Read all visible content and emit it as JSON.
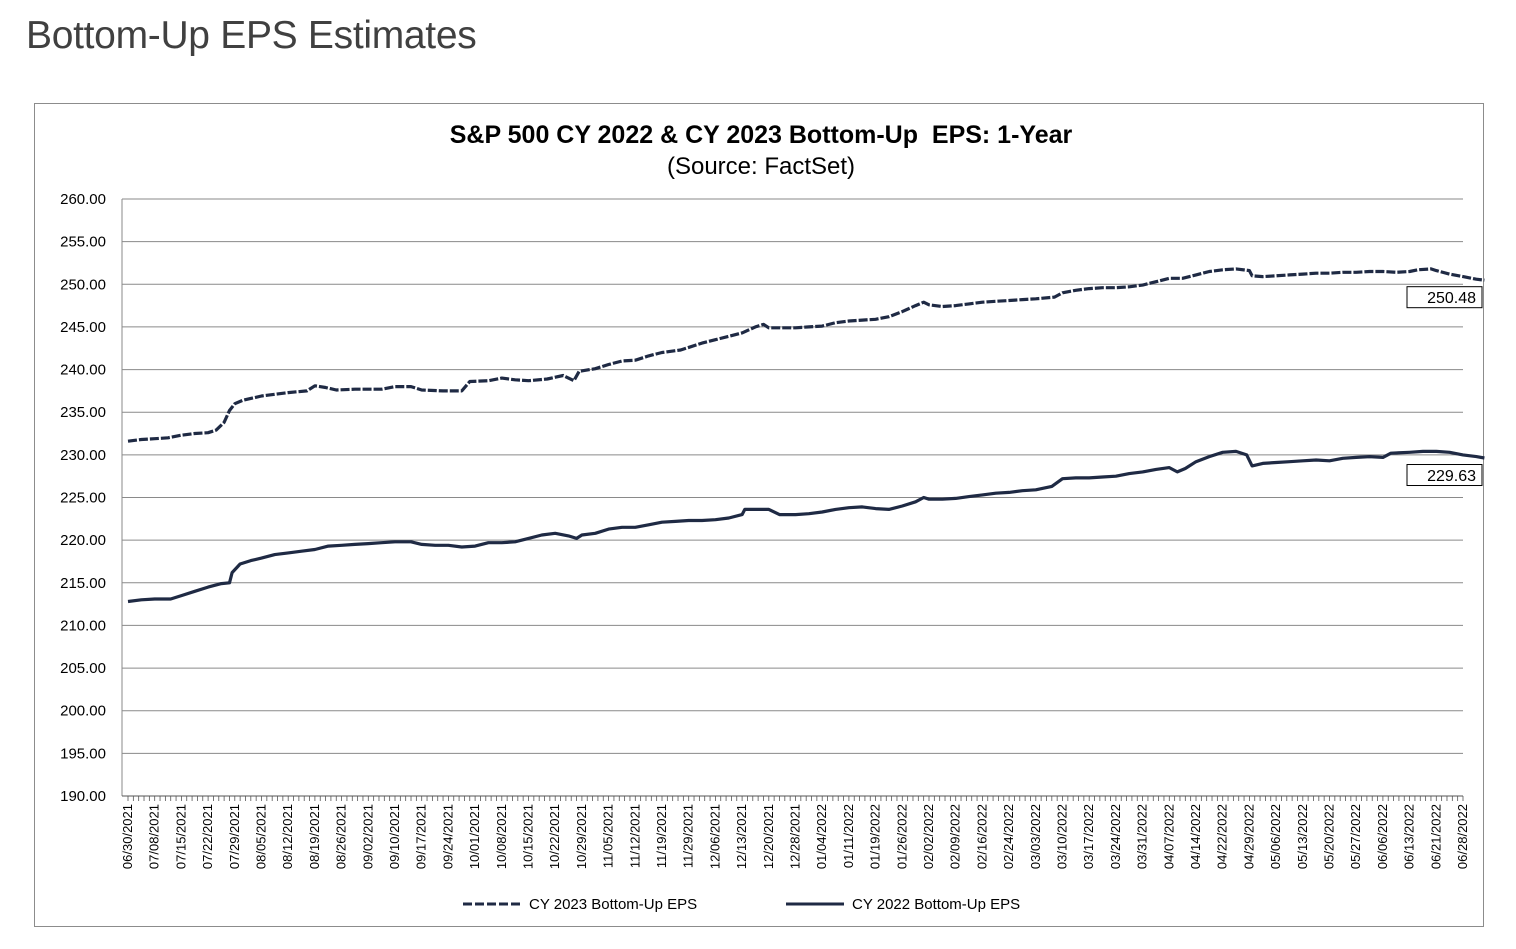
{
  "page": {
    "heading": "Bottom-Up EPS Estimates"
  },
  "chart_data": {
    "type": "line",
    "title": "S&P 500 CY 2022 & CY 2023 Bottom-Up  EPS: 1-Year",
    "subtitle": "(Source: FactSet)",
    "xlabel": "",
    "ylabel": "",
    "ylim": [
      190,
      260
    ],
    "ytick_step": 5,
    "y_ticks": [
      "260.00",
      "255.00",
      "250.00",
      "245.00",
      "240.00",
      "235.00",
      "230.00",
      "225.00",
      "220.00",
      "215.00",
      "210.00",
      "205.00",
      "200.00",
      "195.00",
      "190.00"
    ],
    "grid": true,
    "legend_position": "bottom",
    "categories": [
      "06/30/2021",
      "07/08/2021",
      "07/15/2021",
      "07/22/2021",
      "07/29/2021",
      "08/05/2021",
      "08/12/2021",
      "08/19/2021",
      "08/26/2021",
      "09/02/2021",
      "09/10/2021",
      "09/17/2021",
      "09/24/2021",
      "10/01/2021",
      "10/08/2021",
      "10/15/2021",
      "10/22/2021",
      "10/29/2021",
      "11/05/2021",
      "11/12/2021",
      "11/19/2021",
      "11/29/2021",
      "12/06/2021",
      "12/13/2021",
      "12/20/2021",
      "12/28/2021",
      "01/04/2022",
      "01/11/2022",
      "01/19/2022",
      "01/26/2022",
      "02/02/2022",
      "02/09/2022",
      "02/16/2022",
      "02/24/2022",
      "03/03/2022",
      "03/10/2022",
      "03/17/2022",
      "03/24/2022",
      "03/31/2022",
      "04/07/2022",
      "04/14/2022",
      "04/22/2022",
      "04/29/2022",
      "05/06/2022",
      "05/13/2022",
      "05/20/2022",
      "05/27/2022",
      "06/06/2022",
      "06/13/2022",
      "06/21/2022",
      "06/28/2022"
    ],
    "series": [
      {
        "name": "CY 2023 Bottom-Up EPS",
        "style": "dashed",
        "color": "#1f2a44",
        "end_label": "250.48",
        "points": [
          [
            0,
            231.6
          ],
          [
            0.5,
            231.8
          ],
          [
            1,
            231.9
          ],
          [
            1.5,
            232.0
          ],
          [
            2,
            232.3
          ],
          [
            2.5,
            232.5
          ],
          [
            3,
            232.6
          ],
          [
            3.3,
            232.9
          ],
          [
            3.6,
            233.8
          ],
          [
            3.8,
            235.2
          ],
          [
            4,
            236.0
          ],
          [
            4.3,
            236.4
          ],
          [
            5,
            236.9
          ],
          [
            5.5,
            237.1
          ],
          [
            6,
            237.3
          ],
          [
            6.7,
            237.5
          ],
          [
            7,
            238.1
          ],
          [
            7.4,
            237.9
          ],
          [
            7.8,
            237.6
          ],
          [
            8.5,
            237.7
          ],
          [
            9.5,
            237.7
          ],
          [
            10,
            238.0
          ],
          [
            10.6,
            238.0
          ],
          [
            11,
            237.6
          ],
          [
            11.8,
            237.5
          ],
          [
            12.5,
            237.5
          ],
          [
            12.8,
            238.6
          ],
          [
            13.5,
            238.7
          ],
          [
            14,
            239.0
          ],
          [
            14.5,
            238.8
          ],
          [
            15,
            238.7
          ],
          [
            15.7,
            238.9
          ],
          [
            16.3,
            239.3
          ],
          [
            16.7,
            238.7
          ],
          [
            16.9,
            239.8
          ],
          [
            17.5,
            240.1
          ],
          [
            18,
            240.6
          ],
          [
            18.5,
            241.0
          ],
          [
            19,
            241.1
          ],
          [
            19.5,
            241.6
          ],
          [
            20,
            242.0
          ],
          [
            20.7,
            242.3
          ],
          [
            21.5,
            243.1
          ],
          [
            22,
            243.5
          ],
          [
            22.5,
            243.9
          ],
          [
            23,
            244.3
          ],
          [
            23.5,
            245.0
          ],
          [
            23.8,
            245.3
          ],
          [
            24,
            244.9
          ],
          [
            24.5,
            244.9
          ],
          [
            25,
            244.9
          ],
          [
            25.5,
            245.0
          ],
          [
            26,
            245.1
          ],
          [
            26.5,
            245.5
          ],
          [
            27,
            245.7
          ],
          [
            27.5,
            245.8
          ],
          [
            28,
            245.9
          ],
          [
            28.5,
            246.2
          ],
          [
            29,
            246.8
          ],
          [
            29.5,
            247.5
          ],
          [
            29.8,
            247.9
          ],
          [
            30,
            247.6
          ],
          [
            30.5,
            247.4
          ],
          [
            31,
            247.5
          ],
          [
            31.5,
            247.7
          ],
          [
            32,
            247.9
          ],
          [
            32.5,
            248.0
          ],
          [
            33,
            248.1
          ],
          [
            33.5,
            248.2
          ],
          [
            34,
            248.3
          ],
          [
            34.7,
            248.5
          ],
          [
            35,
            249.0
          ],
          [
            35.5,
            249.3
          ],
          [
            36,
            249.5
          ],
          [
            36.5,
            249.6
          ],
          [
            37,
            249.6
          ],
          [
            37.5,
            249.7
          ],
          [
            38,
            249.9
          ],
          [
            38.5,
            250.3
          ],
          [
            39,
            250.7
          ],
          [
            39.5,
            250.7
          ],
          [
            40,
            251.1
          ],
          [
            40.5,
            251.5
          ],
          [
            41,
            251.7
          ],
          [
            41.5,
            251.8
          ],
          [
            42,
            251.6
          ],
          [
            42.1,
            251.0
          ],
          [
            42.5,
            250.9
          ],
          [
            43,
            251.0
          ],
          [
            43.5,
            251.1
          ],
          [
            44,
            251.2
          ],
          [
            44.5,
            251.3
          ],
          [
            45,
            251.3
          ],
          [
            45.5,
            251.4
          ],
          [
            46,
            251.4
          ],
          [
            46.5,
            251.5
          ],
          [
            47,
            251.5
          ],
          [
            47.5,
            251.4
          ],
          [
            48,
            251.5
          ],
          [
            48.3,
            251.7
          ],
          [
            48.8,
            251.8
          ],
          [
            49,
            251.6
          ],
          [
            49.5,
            251.2
          ],
          [
            50,
            250.9
          ],
          [
            50.5,
            250.6
          ],
          [
            50.8,
            250.48
          ]
        ]
      },
      {
        "name": "CY 2022 Bottom-Up EPS",
        "style": "solid",
        "color": "#1f2a44",
        "end_label": "229.63",
        "points": [
          [
            0,
            212.8
          ],
          [
            0.5,
            213.0
          ],
          [
            1,
            213.1
          ],
          [
            1.6,
            213.1
          ],
          [
            2,
            213.5
          ],
          [
            2.5,
            214.0
          ],
          [
            3,
            214.5
          ],
          [
            3.5,
            214.9
          ],
          [
            3.8,
            215.0
          ],
          [
            3.9,
            216.2
          ],
          [
            4.2,
            217.2
          ],
          [
            4.6,
            217.6
          ],
          [
            5,
            217.9
          ],
          [
            5.5,
            218.3
          ],
          [
            6,
            218.5
          ],
          [
            6.5,
            218.7
          ],
          [
            7,
            218.9
          ],
          [
            7.5,
            219.3
          ],
          [
            8,
            219.4
          ],
          [
            8.5,
            219.5
          ],
          [
            9,
            219.6
          ],
          [
            9.5,
            219.7
          ],
          [
            10,
            219.8
          ],
          [
            10.6,
            219.8
          ],
          [
            11,
            219.5
          ],
          [
            11.5,
            219.4
          ],
          [
            12,
            219.4
          ],
          [
            12.5,
            219.2
          ],
          [
            13,
            219.3
          ],
          [
            13.5,
            219.7
          ],
          [
            14,
            219.7
          ],
          [
            14.5,
            219.8
          ],
          [
            15,
            220.2
          ],
          [
            15.5,
            220.6
          ],
          [
            16,
            220.8
          ],
          [
            16.5,
            220.5
          ],
          [
            16.8,
            220.2
          ],
          [
            17,
            220.6
          ],
          [
            17.5,
            220.8
          ],
          [
            18,
            221.3
          ],
          [
            18.5,
            221.5
          ],
          [
            19,
            221.5
          ],
          [
            19.5,
            221.8
          ],
          [
            20,
            222.1
          ],
          [
            20.5,
            222.2
          ],
          [
            21,
            222.3
          ],
          [
            21.5,
            222.3
          ],
          [
            22,
            222.4
          ],
          [
            22.5,
            222.6
          ],
          [
            23,
            223.0
          ],
          [
            23.1,
            223.6
          ],
          [
            23.5,
            223.6
          ],
          [
            24,
            223.6
          ],
          [
            24.4,
            223.0
          ],
          [
            25,
            223.0
          ],
          [
            25.5,
            223.1
          ],
          [
            26,
            223.3
          ],
          [
            26.5,
            223.6
          ],
          [
            27,
            223.8
          ],
          [
            27.5,
            223.9
          ],
          [
            28,
            223.7
          ],
          [
            28.5,
            223.6
          ],
          [
            29,
            224.0
          ],
          [
            29.5,
            224.5
          ],
          [
            29.8,
            225.0
          ],
          [
            30,
            224.8
          ],
          [
            30.5,
            224.8
          ],
          [
            31,
            224.9
          ],
          [
            31.5,
            225.1
          ],
          [
            32,
            225.3
          ],
          [
            32.5,
            225.5
          ],
          [
            33,
            225.6
          ],
          [
            33.5,
            225.8
          ],
          [
            34,
            225.9
          ],
          [
            34.6,
            226.3
          ],
          [
            35,
            227.2
          ],
          [
            35.5,
            227.3
          ],
          [
            36,
            227.3
          ],
          [
            36.5,
            227.4
          ],
          [
            37,
            227.5
          ],
          [
            37.5,
            227.8
          ],
          [
            38,
            228.0
          ],
          [
            38.5,
            228.3
          ],
          [
            39,
            228.5
          ],
          [
            39.3,
            228.0
          ],
          [
            39.6,
            228.4
          ],
          [
            40,
            229.2
          ],
          [
            40.5,
            229.8
          ],
          [
            41,
            230.3
          ],
          [
            41.5,
            230.4
          ],
          [
            41.9,
            230.0
          ],
          [
            42.1,
            228.7
          ],
          [
            42.5,
            229.0
          ],
          [
            43,
            229.1
          ],
          [
            43.5,
            229.2
          ],
          [
            44,
            229.3
          ],
          [
            44.5,
            229.4
          ],
          [
            45,
            229.3
          ],
          [
            45.5,
            229.6
          ],
          [
            46,
            229.7
          ],
          [
            46.5,
            229.8
          ],
          [
            47,
            229.7
          ],
          [
            47.3,
            230.2
          ],
          [
            48,
            230.3
          ],
          [
            48.5,
            230.4
          ],
          [
            49,
            230.4
          ],
          [
            49.5,
            230.3
          ],
          [
            50,
            230.0
          ],
          [
            50.5,
            229.8
          ],
          [
            50.8,
            229.63
          ]
        ]
      }
    ]
  }
}
